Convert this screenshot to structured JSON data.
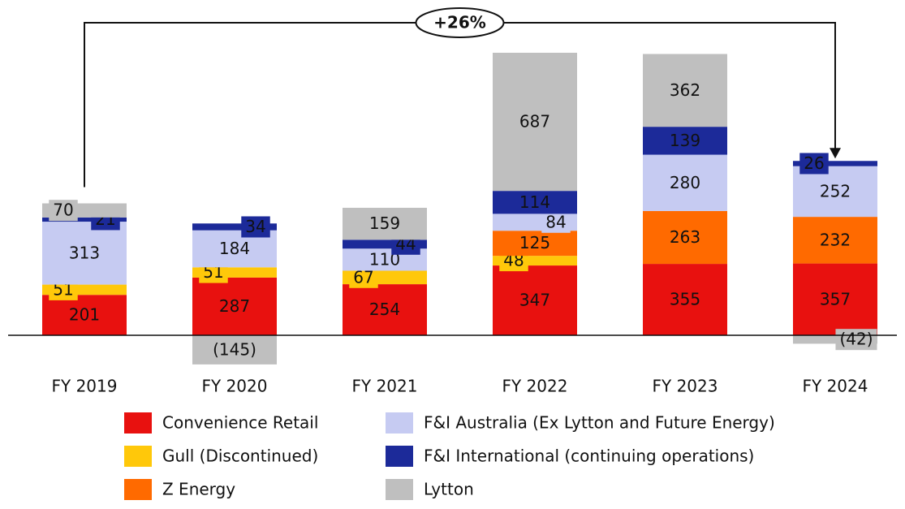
{
  "chart_data": {
    "type": "stacked_bar",
    "annotation": "+26%",
    "categories": [
      "FY 2019",
      "FY 2020",
      "FY 2021",
      "FY 2022",
      "FY 2023",
      "FY 2024"
    ],
    "series": [
      {
        "name": "Convenience Retail",
        "color": "#e8110f",
        "values": [
          201,
          287,
          254,
          347,
          355,
          357
        ]
      },
      {
        "name": "Gull (Discontinued)",
        "color": "#ffc80a",
        "values": [
          51,
          51,
          67,
          48,
          null,
          null
        ]
      },
      {
        "name": "Z Energy",
        "color": "#ff6a00",
        "values": [
          null,
          null,
          null,
          125,
          263,
          232
        ]
      },
      {
        "name": "F&I Australia (Ex Lytton and Future Energy)",
        "color": "#c6cbf2",
        "values": [
          313,
          184,
          110,
          84,
          280,
          252
        ]
      },
      {
        "name": "F&I International (continuing operations)",
        "color": "#1c2a99",
        "values": [
          21,
          34,
          44,
          114,
          139,
          26
        ]
      },
      {
        "name": "Lytton",
        "color": "#bfbfbf",
        "values": [
          70,
          -145,
          159,
          687,
          362,
          -42
        ],
        "value_labels": [
          "70",
          "(145)",
          "159",
          "687",
          "362",
          "(42)"
        ]
      }
    ],
    "legend": {
      "columns": [
        [
          0,
          1,
          2
        ],
        [
          3,
          4,
          5
        ]
      ]
    }
  }
}
